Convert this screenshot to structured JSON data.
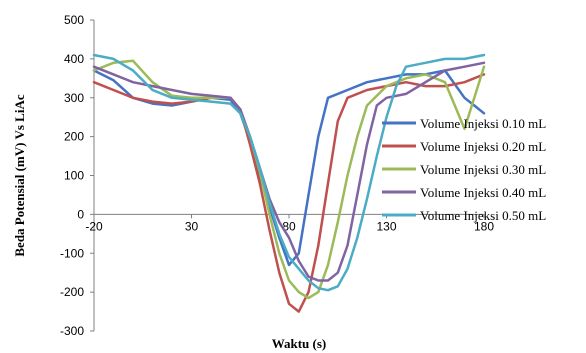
{
  "chart_data": {
    "type": "line",
    "title": "",
    "xlabel": "Waktu (s)",
    "ylabel": "Beda Potensial (mV) Vs  LiAc",
    "xlim": [
      -20,
      180
    ],
    "ylim": [
      -300,
      500
    ],
    "x_ticks": [
      "-20",
      "30",
      "80",
      "130",
      "180"
    ],
    "y_ticks": [
      "-300",
      "-200",
      "-100",
      "0",
      "100",
      "200",
      "300",
      "400",
      "500"
    ],
    "grid": false,
    "legend_position": "right",
    "series": [
      {
        "name": "Volume Injeksi 0.10 mL",
        "color": "#4472c4",
        "points": [
          [
            -20,
            370
          ],
          [
            -10,
            345
          ],
          [
            0,
            300
          ],
          [
            10,
            285
          ],
          [
            20,
            280
          ],
          [
            30,
            290
          ],
          [
            40,
            300
          ],
          [
            50,
            295
          ],
          [
            55,
            260
          ],
          [
            60,
            190
          ],
          [
            65,
            100
          ],
          [
            70,
            20
          ],
          [
            75,
            -60
          ],
          [
            80,
            -130
          ],
          [
            85,
            -100
          ],
          [
            90,
            50
          ],
          [
            95,
            200
          ],
          [
            100,
            300
          ],
          [
            110,
            320
          ],
          [
            120,
            340
          ],
          [
            130,
            350
          ],
          [
            140,
            360
          ],
          [
            150,
            360
          ],
          [
            160,
            370
          ],
          [
            170,
            300
          ],
          [
            175,
            280
          ],
          [
            180,
            260
          ]
        ]
      },
      {
        "name": "Volume Injeksi 0.20 mL",
        "color": "#c0504d",
        "points": [
          [
            -20,
            340
          ],
          [
            -10,
            320
          ],
          [
            0,
            300
          ],
          [
            10,
            290
          ],
          [
            20,
            285
          ],
          [
            30,
            290
          ],
          [
            40,
            300
          ],
          [
            50,
            300
          ],
          [
            55,
            270
          ],
          [
            60,
            180
          ],
          [
            65,
            80
          ],
          [
            70,
            -40
          ],
          [
            75,
            -150
          ],
          [
            80,
            -230
          ],
          [
            85,
            -250
          ],
          [
            90,
            -200
          ],
          [
            95,
            -80
          ],
          [
            100,
            80
          ],
          [
            105,
            240
          ],
          [
            110,
            300
          ],
          [
            120,
            320
          ],
          [
            130,
            330
          ],
          [
            140,
            340
          ],
          [
            150,
            330
          ],
          [
            160,
            330
          ],
          [
            170,
            340
          ],
          [
            180,
            360
          ]
        ]
      },
      {
        "name": "Volume Injeksi 0.30 mL",
        "color": "#9bbb59",
        "points": [
          [
            -20,
            370
          ],
          [
            -10,
            390
          ],
          [
            0,
            395
          ],
          [
            10,
            340
          ],
          [
            20,
            305
          ],
          [
            30,
            300
          ],
          [
            40,
            300
          ],
          [
            50,
            300
          ],
          [
            55,
            270
          ],
          [
            60,
            200
          ],
          [
            65,
            110
          ],
          [
            70,
            0
          ],
          [
            75,
            -100
          ],
          [
            80,
            -170
          ],
          [
            85,
            -200
          ],
          [
            90,
            -215
          ],
          [
            95,
            -200
          ],
          [
            100,
            -130
          ],
          [
            105,
            -20
          ],
          [
            110,
            100
          ],
          [
            115,
            200
          ],
          [
            120,
            280
          ],
          [
            130,
            330
          ],
          [
            140,
            350
          ],
          [
            150,
            360
          ],
          [
            160,
            340
          ],
          [
            165,
            280
          ],
          [
            170,
            220
          ],
          [
            175,
            300
          ],
          [
            180,
            380
          ]
        ]
      },
      {
        "name": "Volume Injeksi 0.40 mL",
        "color": "#8064a2",
        "points": [
          [
            -20,
            380
          ],
          [
            -10,
            360
          ],
          [
            0,
            340
          ],
          [
            10,
            330
          ],
          [
            20,
            320
          ],
          [
            30,
            310
          ],
          [
            40,
            305
          ],
          [
            50,
            300
          ],
          [
            55,
            270
          ],
          [
            60,
            200
          ],
          [
            65,
            120
          ],
          [
            70,
            40
          ],
          [
            75,
            -20
          ],
          [
            80,
            -60
          ],
          [
            85,
            -120
          ],
          [
            90,
            -160
          ],
          [
            95,
            -170
          ],
          [
            100,
            -170
          ],
          [
            105,
            -150
          ],
          [
            110,
            -80
          ],
          [
            115,
            50
          ],
          [
            120,
            180
          ],
          [
            125,
            280
          ],
          [
            130,
            300
          ],
          [
            140,
            310
          ],
          [
            150,
            340
          ],
          [
            160,
            370
          ],
          [
            170,
            380
          ],
          [
            180,
            390
          ]
        ]
      },
      {
        "name": "Volume Injeksi 0.50 mL",
        "color": "#4bacc6",
        "points": [
          [
            -20,
            410
          ],
          [
            -10,
            400
          ],
          [
            0,
            370
          ],
          [
            10,
            320
          ],
          [
            20,
            300
          ],
          [
            30,
            295
          ],
          [
            40,
            290
          ],
          [
            50,
            285
          ],
          [
            55,
            260
          ],
          [
            60,
            200
          ],
          [
            65,
            120
          ],
          [
            70,
            30
          ],
          [
            75,
            -50
          ],
          [
            80,
            -110
          ],
          [
            85,
            -140
          ],
          [
            90,
            -170
          ],
          [
            95,
            -190
          ],
          [
            100,
            -195
          ],
          [
            105,
            -185
          ],
          [
            110,
            -140
          ],
          [
            115,
            -60
          ],
          [
            120,
            40
          ],
          [
            125,
            150
          ],
          [
            130,
            250
          ],
          [
            135,
            330
          ],
          [
            140,
            380
          ],
          [
            150,
            390
          ],
          [
            160,
            400
          ],
          [
            170,
            400
          ],
          [
            180,
            410
          ]
        ]
      }
    ]
  }
}
